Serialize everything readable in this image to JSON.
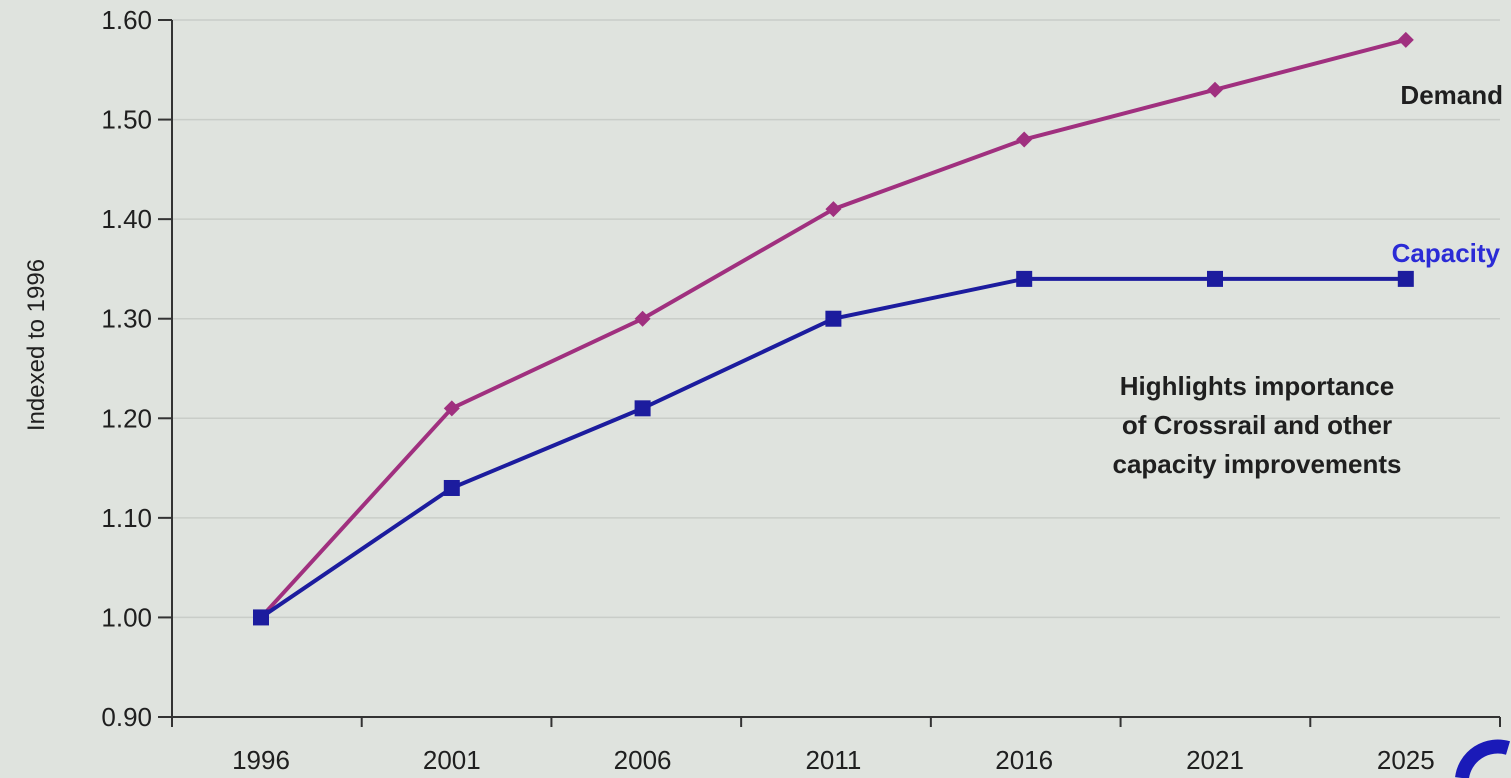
{
  "chart_data": {
    "type": "line",
    "title": "",
    "xlabel": "",
    "ylabel": "Indexed to 1996",
    "categories": [
      "1996",
      "2001",
      "2006",
      "2011",
      "2016",
      "2021",
      "2025"
    ],
    "x_ticks": [
      "1996",
      "2001",
      "2006",
      "2011",
      "2016",
      "2021",
      "2025"
    ],
    "y_ticks": [
      "0.90",
      "1.00",
      "1.10",
      "1.20",
      "1.30",
      "1.40",
      "1.50",
      "1.60"
    ],
    "ylim": [
      0.9,
      1.6
    ],
    "grid": true,
    "series": [
      {
        "name": "Demand",
        "color": "#a0307f",
        "marker": "diamond",
        "values": [
          1.0,
          1.21,
          1.3,
          1.41,
          1.48,
          1.53,
          1.58
        ]
      },
      {
        "name": "Capacity",
        "color": "#1c1c9e",
        "label_color": "#2b2bd6",
        "marker": "square",
        "values": [
          1.0,
          1.13,
          1.21,
          1.3,
          1.34,
          1.34,
          1.34
        ]
      }
    ],
    "annotation": [
      "Highlights importance",
      "of Crossrail and other",
      "capacity improvements"
    ]
  }
}
